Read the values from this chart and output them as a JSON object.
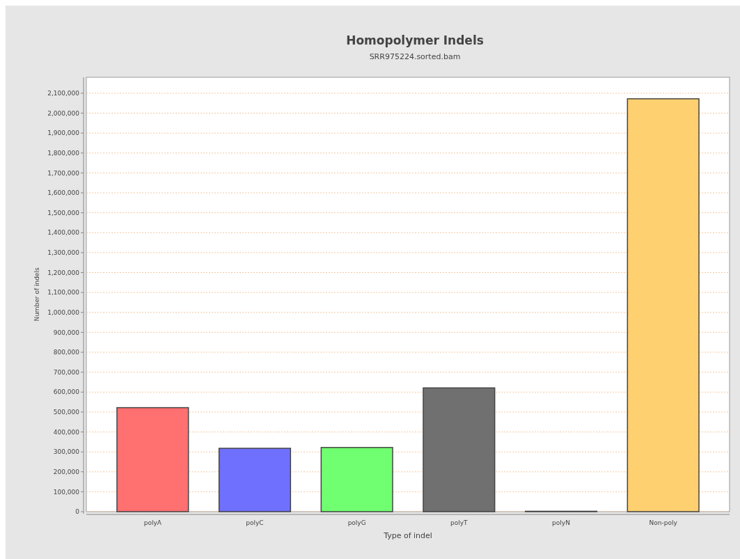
{
  "chart_data": {
    "type": "bar",
    "title": "Homopolymer Indels",
    "subtitle": "SRR975224.sorted.bam",
    "xlabel": "Type of indel",
    "ylabel": "Number of indels",
    "categories": [
      "polyA",
      "polyC",
      "polyG",
      "polyT",
      "polyN",
      "Non-poly"
    ],
    "values": [
      522000,
      318000,
      322000,
      621000,
      2000,
      2072000
    ],
    "colors": [
      "#ff7070",
      "#7070ff",
      "#70ff70",
      "#707070",
      "#70ffff",
      "#ffd070"
    ],
    "ylim": [
      0,
      2180000
    ],
    "yticks": [
      {
        "value": 0,
        "label": "0"
      },
      {
        "value": 100000,
        "label": "100,000"
      },
      {
        "value": 200000,
        "label": "200,000"
      },
      {
        "value": 300000,
        "label": "300,000"
      },
      {
        "value": 400000,
        "label": "400,000"
      },
      {
        "value": 500000,
        "label": "500,000"
      },
      {
        "value": 600000,
        "label": "600,000"
      },
      {
        "value": 700000,
        "label": "700,000"
      },
      {
        "value": 800000,
        "label": "800,000"
      },
      {
        "value": 900000,
        "label": "900,000"
      },
      {
        "value": 1000000,
        "label": "1,000,000"
      },
      {
        "value": 1100000,
        "label": "1,100,000"
      },
      {
        "value": 1200000,
        "label": "1,200,000"
      },
      {
        "value": 1300000,
        "label": "1,300,000"
      },
      {
        "value": 1400000,
        "label": "1,400,000"
      },
      {
        "value": 1500000,
        "label": "1,500,000"
      },
      {
        "value": 1600000,
        "label": "1,600,000"
      },
      {
        "value": 1700000,
        "label": "1,700,000"
      },
      {
        "value": 1800000,
        "label": "1,800,000"
      },
      {
        "value": 1900000,
        "label": "1,900,000"
      },
      {
        "value": 2000000,
        "label": "2,000,000"
      },
      {
        "value": 2100000,
        "label": "2,100,000"
      }
    ],
    "grid": "y"
  }
}
